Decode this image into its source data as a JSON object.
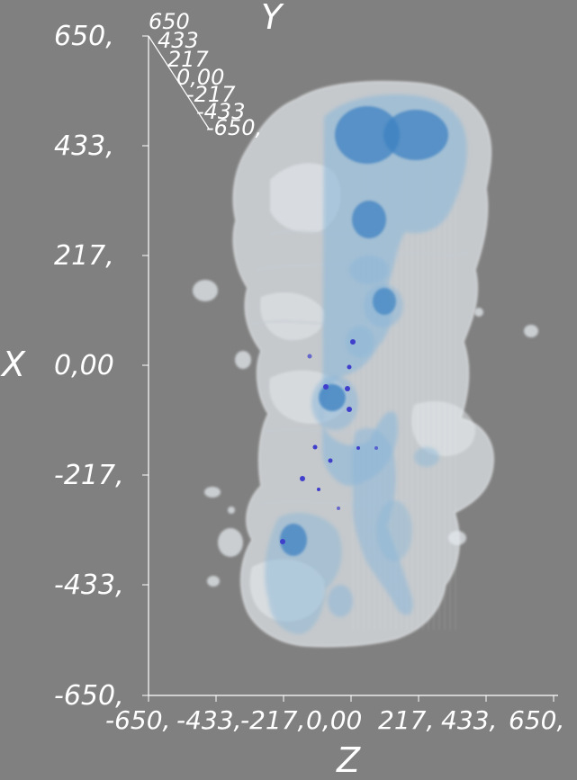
{
  "viewer": {
    "background_color": "#808080",
    "axis_color": "#ffffff",
    "isosurface_colors": {
      "outer": "#d6dce2",
      "middle": "#8fb6d6",
      "inner": "#3f85c4",
      "points": "#3030c8"
    }
  },
  "axes": {
    "x": {
      "title": "X",
      "ticks": [
        "650,",
        "433,",
        "217,",
        "0,00",
        "-217,",
        "-433,",
        "-650,"
      ]
    },
    "z": {
      "title": "Z",
      "ticks": [
        "-650,",
        "-433,",
        "-217,",
        "0,00",
        "217,",
        "433,",
        "650,"
      ]
    },
    "y": {
      "title": "Y",
      "ticks": [
        "650",
        "433",
        "217",
        "0,00",
        "-217",
        "-433",
        "-650,"
      ]
    }
  }
}
